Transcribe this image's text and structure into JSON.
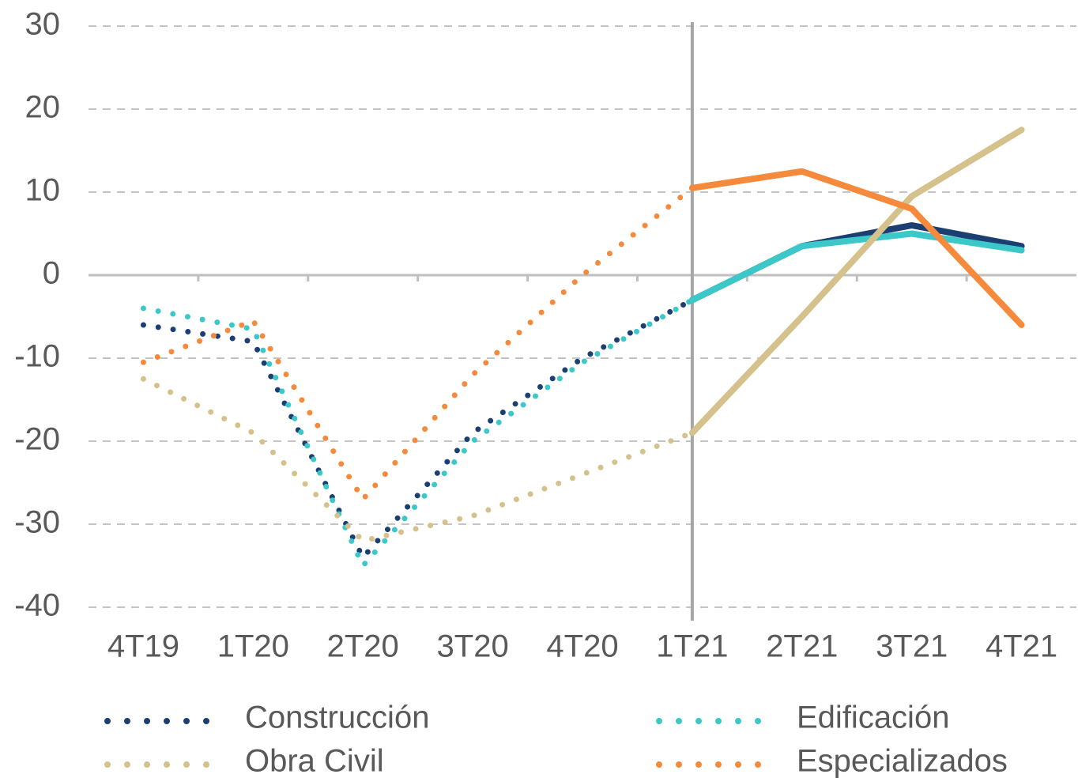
{
  "chart_data": {
    "type": "line",
    "categories": [
      "4T19",
      "1T20",
      "2T20",
      "3T20",
      "4T20",
      "1T21",
      "2T21",
      "3T21",
      "4T21"
    ],
    "series": [
      {
        "name": "Construcción",
        "color": "#1b3f73",
        "values": [
          -6,
          -8,
          -34,
          -19,
          -10,
          -3,
          3.5,
          6,
          3.5
        ]
      },
      {
        "name": "Edificación",
        "color": "#3cc7c9",
        "values": [
          -4,
          -6.5,
          -35,
          -20,
          -10.5,
          -3,
          3.5,
          5,
          3
        ]
      },
      {
        "name": "Obra Civil",
        "color": "#d5c18b",
        "values": [
          -12.5,
          -19,
          -32,
          -29,
          -24,
          -19,
          -5,
          9.5,
          17.5
        ]
      },
      {
        "name": "Especializados",
        "color": "#f58a3d",
        "values": [
          -10.5,
          -5.5,
          -27,
          -12,
          0,
          10.5,
          12.5,
          8,
          -6
        ]
      }
    ],
    "ylim": [
      -40,
      30
    ],
    "yticks": [
      -40,
      -30,
      -20,
      -10,
      0,
      10,
      20,
      30
    ],
    "grid": true,
    "solid_from_index": 5
  }
}
